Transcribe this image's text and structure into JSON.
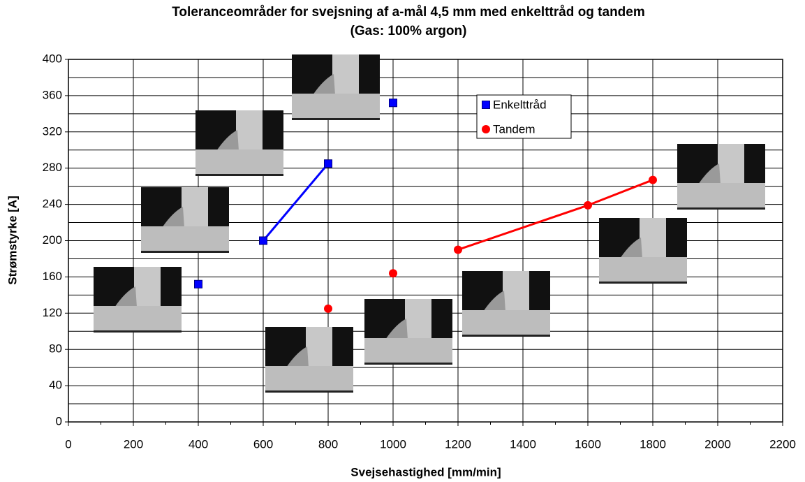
{
  "chart_data": {
    "type": "scatter",
    "title": "Toleranceområder for svejsning af a-mål 4,5 mm med enkelttråd og tandem",
    "subtitle": "(Gas: 100% argon)",
    "x_label": "Svejsehastighed [mm/min]",
    "y_label": "Strømstyrke [A]",
    "xlim": [
      0,
      2200
    ],
    "xticks": [
      0,
      200,
      400,
      600,
      800,
      1000,
      1200,
      1400,
      1600,
      1800,
      2000,
      2200
    ],
    "ylim": [
      0,
      400
    ],
    "yticks": [
      0,
      40,
      80,
      120,
      160,
      200,
      240,
      280,
      320,
      360,
      400
    ],
    "grid": true,
    "series": [
      {
        "name": "Enkelttråd",
        "color": "#0000ff",
        "marker": "square",
        "x": [
          400,
          600,
          800,
          1000
        ],
        "values": [
          152,
          200,
          285,
          352
        ],
        "joined": [
          false,
          false,
          true,
          false
        ]
      },
      {
        "name": "Tandem",
        "color": "#ff0000",
        "marker": "circle",
        "x": [
          800,
          1000,
          1200,
          1600,
          1800
        ],
        "values": [
          125,
          164,
          190,
          239,
          267
        ],
        "joined": [
          false,
          false,
          false,
          true,
          true
        ]
      }
    ]
  }
}
